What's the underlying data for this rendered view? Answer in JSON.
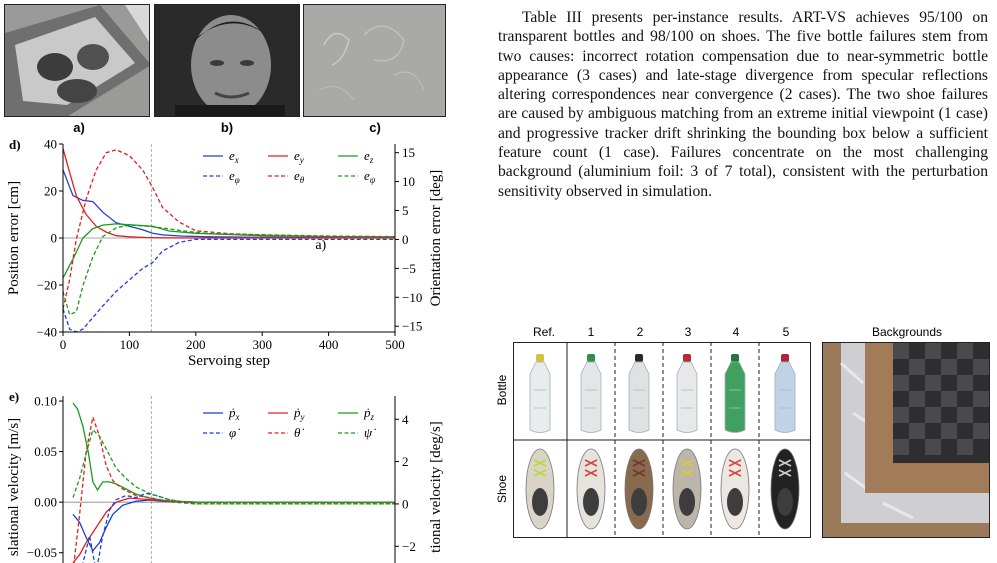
{
  "paragraph": "Table III presents per-instance results. ART-VS achieves 95/100 on transparent bottles and 98/100 on shoes. The five bottle failures stem from two causes: incorrect rotation compensation due to near-symmetric bottle appearance (3 cases) and late-stage divergence from specular reflections altering correspondences near convergence (2 cases). The two shoe failures are caused by ambiguous matching from an extreme initial viewpoint (1 case) and progressive tracker drift shrinking the bounding box below a sufficient feature count (1 case). Failures concentrate on the most challenging background (aluminium foil: 3 of 7 total), consistent with the perturbation sensitivity observed in simulation.",
  "top_panels": {
    "a_label": "a)",
    "b_label": "b)",
    "c_label": "c)"
  },
  "dataset_figure": {
    "col_headers": [
      "Ref.",
      "1",
      "2",
      "3",
      "4",
      "5"
    ],
    "backgrounds_label": "Backgrounds",
    "row_labels": [
      "Bottle",
      "Shoe"
    ],
    "bottle_cap_colors": [
      "#d8c23a",
      "#2f8f4e",
      "#2a2a2a",
      "#b8283b",
      "#1f7a3c",
      "#b0233b"
    ],
    "bottle_body_colors": [
      "#e9ecef",
      "#e3e6e8",
      "#dfe2e4",
      "#e6e8ea",
      "#3fa060",
      "#bfd3e6"
    ],
    "shoe_colors": [
      "#d9d4c6",
      "#e6e2dc",
      "#8a6a4f",
      "#bcb6aa",
      "#ece7e2",
      "#222222"
    ],
    "shoe_accent_colors": [
      "#b7d934",
      "#d64545",
      "#6d3a2a",
      "#d9c640",
      "#d64a3a",
      "#cccccc"
    ]
  },
  "chart_data": [
    {
      "panel": "d)",
      "type": "line",
      "xlabel": "Servoing step",
      "ylabel": "Position error [cm]",
      "ylabel_right": "Orientation error [deg]",
      "xlim": [
        0,
        500
      ],
      "ylim": [
        -40,
        40
      ],
      "ylim_right": [
        -16,
        16.5
      ],
      "xticks": [
        0,
        100,
        200,
        300,
        400,
        500
      ],
      "yticks": [
        -40,
        -20,
        0,
        20,
        40
      ],
      "yticks_right": [
        -15,
        -10,
        -5,
        0,
        5,
        10,
        15
      ],
      "vline_x": 133,
      "annotation": "a)",
      "legend_position": "top-right",
      "series": [
        {
          "name": "e_x",
          "label_base": "e",
          "label_sub": "x",
          "axis": "left",
          "color": "#1f3fd6",
          "dash": false,
          "x": [
            0,
            15,
            30,
            45,
            60,
            80,
            100,
            120,
            135,
            150,
            180,
            220,
            300,
            400,
            500
          ],
          "y": [
            29,
            18,
            16,
            15.5,
            11,
            6.5,
            5,
            3.5,
            2,
            1.3,
            0.8,
            0.5,
            0.3,
            0.2,
            0.2
          ]
        },
        {
          "name": "e_y",
          "label_base": "e",
          "label_sub": "y",
          "axis": "left",
          "color": "#e02020",
          "dash": false,
          "x": [
            0,
            10,
            20,
            35,
            50,
            65,
            80,
            100,
            125,
            150,
            200,
            300,
            500
          ],
          "y": [
            38,
            28,
            18,
            10,
            5,
            2.5,
            1,
            0.5,
            0.2,
            0.1,
            0,
            0,
            0
          ]
        },
        {
          "name": "e_z",
          "label_base": "e",
          "label_sub": "z",
          "axis": "left",
          "color": "#1a9c1a",
          "dash": false,
          "x": [
            0,
            15,
            30,
            45,
            60,
            80,
            110,
            135,
            160,
            200,
            250,
            300,
            400,
            500
          ],
          "y": [
            -17,
            -9,
            0,
            4,
            5.5,
            6,
            5.5,
            5,
            3,
            2,
            1.5,
            1,
            0.6,
            0.5
          ]
        },
        {
          "name": "e_phi",
          "label_base": "e",
          "label_sub": "φ",
          "axis": "right",
          "color": "#1f3fd6",
          "dash": true,
          "x": [
            0,
            10,
            20,
            30,
            45,
            60,
            80,
            100,
            120,
            135,
            150,
            175,
            200,
            250,
            300,
            400,
            500
          ],
          "y": [
            -12,
            -15.5,
            -16,
            -15.5,
            -13.5,
            -11.5,
            -9,
            -7,
            -5,
            -4,
            -2,
            -0.5,
            0,
            0,
            0,
            0,
            0
          ]
        },
        {
          "name": "e_theta",
          "label_base": "e",
          "label_sub": "θ",
          "axis": "right",
          "color": "#e02020",
          "dash": true,
          "x": [
            0,
            10,
            20,
            35,
            50,
            65,
            80,
            100,
            120,
            135,
            150,
            175,
            200,
            250,
            300,
            400,
            500
          ],
          "y": [
            -12,
            -7,
            0,
            7,
            12,
            15,
            15.5,
            14.5,
            12,
            9,
            5.5,
            3,
            1.5,
            1,
            0.8,
            0.5,
            0.3
          ]
        },
        {
          "name": "e_psi",
          "label_base": "e",
          "label_sub": "ψ",
          "axis": "right",
          "color": "#1a9c1a",
          "dash": true,
          "x": [
            0,
            10,
            20,
            30,
            45,
            60,
            80,
            100,
            125,
            150,
            180,
            220,
            300,
            400,
            500
          ],
          "y": [
            -9,
            -13,
            -12.5,
            -8,
            -3,
            0.5,
            2,
            2.5,
            2.3,
            2,
            1.5,
            1,
            0.8,
            0.6,
            0.5
          ]
        }
      ]
    },
    {
      "panel": "e)",
      "type": "line",
      "ylabel": "slational velocity [m/s]",
      "ylabel_right": "tional velocity [deg/s]",
      "xlim": [
        0,
        500
      ],
      "ylim": [
        -0.075,
        0.105
      ],
      "ylim_right": [
        -3.5,
        5.1
      ],
      "yticks": [
        -0.05,
        0.0,
        0.05,
        0.1
      ],
      "ytick_labels": [
        "−0.05",
        "0.00",
        "0.05",
        "0.10"
      ],
      "yticks_right": [
        -2,
        0,
        2,
        4
      ],
      "vline_x": 133,
      "legend_position": "top-right",
      "series": [
        {
          "name": "p_x_dot",
          "label_base": "ṗ",
          "label_sub": "x",
          "axis": "left",
          "color": "#1f3fd6",
          "dash": false,
          "x": [
            15,
            25,
            35,
            45,
            55,
            65,
            75,
            90,
            110,
            130,
            160,
            200,
            300,
            500
          ],
          "y": [
            -0.012,
            -0.02,
            -0.035,
            -0.048,
            -0.04,
            -0.025,
            -0.012,
            -0.003,
            0.001,
            0.002,
            0.0005,
            0,
            0,
            0
          ]
        },
        {
          "name": "p_y_dot",
          "label_base": "ṗ",
          "label_sub": "y",
          "axis": "left",
          "color": "#e02020",
          "dash": false,
          "x": [
            15,
            25,
            35,
            45,
            55,
            65,
            80,
            100,
            120,
            140,
            170,
            200,
            300,
            500
          ],
          "y": [
            -0.06,
            -0.052,
            -0.04,
            -0.03,
            -0.02,
            -0.01,
            0.0,
            0.004,
            0.003,
            0.002,
            0.001,
            0,
            0,
            0
          ]
        },
        {
          "name": "p_z_dot",
          "label_base": "ṗ",
          "label_sub": "z",
          "axis": "left",
          "color": "#1a9c1a",
          "dash": false,
          "x": [
            15,
            22,
            30,
            38,
            45,
            52,
            60,
            70,
            80,
            95,
            110,
            130,
            160,
            200,
            300,
            500
          ],
          "y": [
            0.098,
            0.092,
            0.075,
            0.05,
            0.02,
            0.012,
            0.02,
            0.02,
            0.018,
            0.013,
            0.008,
            0.004,
            0.001,
            0,
            0,
            0
          ]
        },
        {
          "name": "phi_dot",
          "label_base": "φ̇",
          "label_sub": "",
          "axis": "right",
          "color": "#1f3fd6",
          "dash": true,
          "x": [
            20,
            30,
            40,
            50,
            60,
            70,
            80,
            95,
            110,
            125,
            140,
            160,
            200,
            300,
            500
          ],
          "y": [
            -3.5,
            -2.8,
            -1.5,
            -3.2,
            -1.5,
            -0.3,
            0.2,
            0.4,
            0.3,
            0.5,
            0.4,
            0.2,
            0,
            0,
            0
          ]
        },
        {
          "name": "theta_dot",
          "label_base": "θ̇",
          "label_sub": "",
          "axis": "right",
          "color": "#e02020",
          "dash": true,
          "x": [
            15,
            25,
            35,
            45,
            55,
            65,
            75,
            90,
            110,
            130,
            160,
            200,
            300,
            500
          ],
          "y": [
            -3.2,
            -0.5,
            2.5,
            4.1,
            3.2,
            1.8,
            1.1,
            0.7,
            0.4,
            0.3,
            0.1,
            0,
            0,
            0
          ]
        },
        {
          "name": "psi_dot",
          "label_base": "ψ̇",
          "label_sub": "",
          "axis": "right",
          "color": "#1a9c1a",
          "dash": true,
          "x": [
            15,
            25,
            35,
            45,
            55,
            65,
            80,
            95,
            110,
            130,
            160,
            200,
            300,
            500
          ],
          "y": [
            0.3,
            1.2,
            2.4,
            3.5,
            3.2,
            2.6,
            1.7,
            1.2,
            0.8,
            0.5,
            0.2,
            0,
            0,
            0
          ]
        }
      ]
    }
  ]
}
